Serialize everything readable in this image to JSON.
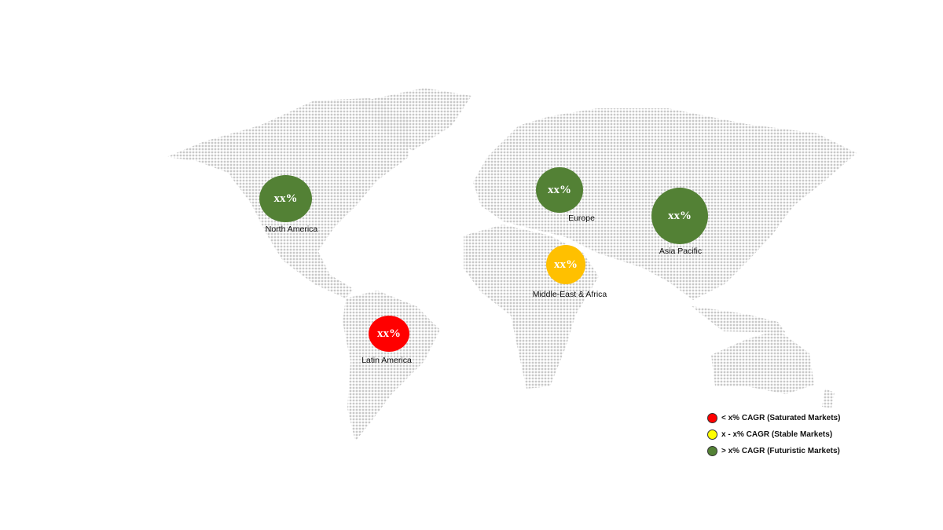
{
  "regions": [
    {
      "name": "North America",
      "value": "xx%",
      "color": "#538135"
    },
    {
      "name": "Europe",
      "value": "xx%",
      "color": "#538135"
    },
    {
      "name": "Asia Pacific",
      "value": "xx%",
      "color": "#538135"
    },
    {
      "name": "Middle-East & Africa",
      "value": "xx%",
      "color": "#FFC000"
    },
    {
      "name": "Latin America",
      "value": "xx%",
      "color": "#FF0000"
    }
  ],
  "legend": [
    {
      "label": "< x% CAGR (Saturated Markets)",
      "color": "#FF0000"
    },
    {
      "label": "x - x% CAGR (Stable Markets)",
      "color": "#FFFF00"
    },
    {
      "label": "> x% CAGR (Futuristic Markets)",
      "color": "#538135"
    }
  ],
  "map_dot_color": "#C8C8C8"
}
